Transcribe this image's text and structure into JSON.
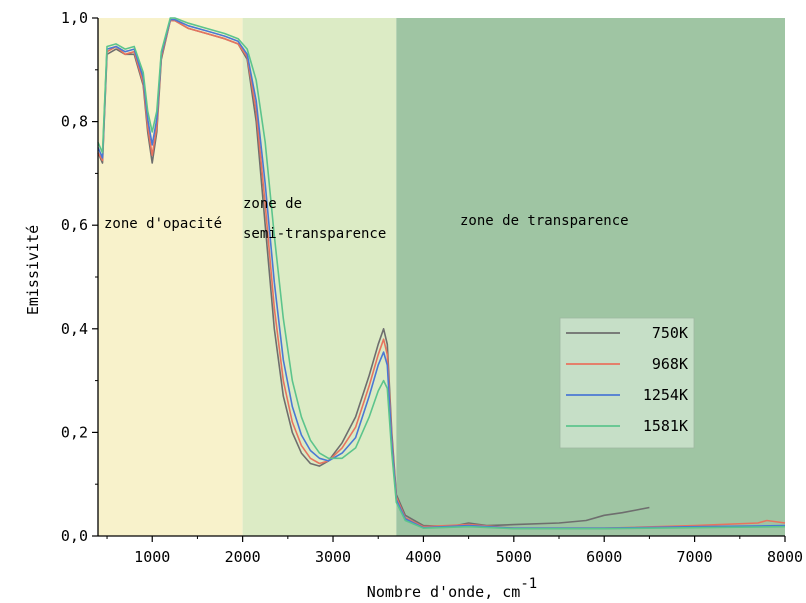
{
  "chart_data": {
    "type": "line",
    "xlabel": "Nombre d'onde, cm",
    "xlabel_sup": "-1",
    "ylabel": "Emissivité",
    "xlim": [
      400,
      8000
    ],
    "ylim": [
      0,
      1.0
    ],
    "xticks": [
      {
        "value": 1000,
        "label": "1000"
      },
      {
        "value": 2000,
        "label": "2000"
      },
      {
        "value": 3000,
        "label": "3000"
      },
      {
        "value": 4000,
        "label": "4000"
      },
      {
        "value": 5000,
        "label": "5000"
      },
      {
        "value": 6000,
        "label": "6000"
      },
      {
        "value": 7000,
        "label": "7000"
      },
      {
        "value": 8000,
        "label": "8000"
      }
    ],
    "yticks": [
      {
        "value": 0.0,
        "label": "0,0"
      },
      {
        "value": 0.2,
        "label": "0,2"
      },
      {
        "value": 0.4,
        "label": "0,4"
      },
      {
        "value": 0.6,
        "label": "0,6"
      },
      {
        "value": 0.8,
        "label": "0,8"
      },
      {
        "value": 1.0,
        "label": "1,0"
      }
    ],
    "zones": [
      {
        "label_lines": [
          "zone d'opacité"
        ],
        "from": 400,
        "to": 2000,
        "color": "#f8f2cb"
      },
      {
        "label_lines": [
          "zone de",
          "semi-transparence"
        ],
        "from": 2000,
        "to": 3700,
        "color": "#dcebc5"
      },
      {
        "label_lines": [
          "zone de transparence"
        ],
        "from": 3700,
        "to": 8000,
        "color": "#9fc5a3"
      }
    ],
    "legend_position": "center-right",
    "series": [
      {
        "name": "750K",
        "color": "#6e6e6e",
        "points": [
          [
            400,
            0.74
          ],
          [
            450,
            0.72
          ],
          [
            500,
            0.93
          ],
          [
            600,
            0.94
          ],
          [
            700,
            0.93
          ],
          [
            800,
            0.93
          ],
          [
            900,
            0.87
          ],
          [
            950,
            0.78
          ],
          [
            1000,
            0.72
          ],
          [
            1050,
            0.78
          ],
          [
            1100,
            0.92
          ],
          [
            1200,
            0.995
          ],
          [
            1250,
            0.995
          ],
          [
            1400,
            0.98
          ],
          [
            1600,
            0.97
          ],
          [
            1800,
            0.96
          ],
          [
            1950,
            0.95
          ],
          [
            2050,
            0.92
          ],
          [
            2150,
            0.8
          ],
          [
            2250,
            0.6
          ],
          [
            2350,
            0.4
          ],
          [
            2450,
            0.27
          ],
          [
            2550,
            0.2
          ],
          [
            2650,
            0.16
          ],
          [
            2750,
            0.14
          ],
          [
            2850,
            0.135
          ],
          [
            2950,
            0.145
          ],
          [
            3100,
            0.18
          ],
          [
            3250,
            0.23
          ],
          [
            3400,
            0.31
          ],
          [
            3500,
            0.37
          ],
          [
            3560,
            0.4
          ],
          [
            3600,
            0.37
          ],
          [
            3650,
            0.2
          ],
          [
            3700,
            0.08
          ],
          [
            3800,
            0.04
          ],
          [
            4000,
            0.02
          ],
          [
            4300,
            0.018
          ],
          [
            4500,
            0.025
          ],
          [
            4700,
            0.02
          ],
          [
            5000,
            0.022
          ],
          [
            5500,
            0.025
          ],
          [
            5800,
            0.03
          ],
          [
            6000,
            0.04
          ],
          [
            6200,
            0.045
          ],
          [
            6350,
            0.05
          ],
          [
            6500,
            0.055
          ]
        ]
      },
      {
        "name": "968K",
        "color": "#e8735e",
        "points": [
          [
            400,
            0.74
          ],
          [
            450,
            0.725
          ],
          [
            500,
            0.935
          ],
          [
            600,
            0.945
          ],
          [
            700,
            0.93
          ],
          [
            800,
            0.935
          ],
          [
            900,
            0.875
          ],
          [
            950,
            0.79
          ],
          [
            1000,
            0.735
          ],
          [
            1050,
            0.79
          ],
          [
            1100,
            0.925
          ],
          [
            1200,
            0.995
          ],
          [
            1250,
            0.995
          ],
          [
            1400,
            0.98
          ],
          [
            1600,
            0.97
          ],
          [
            1800,
            0.96
          ],
          [
            1950,
            0.95
          ],
          [
            2050,
            0.925
          ],
          [
            2150,
            0.82
          ],
          [
            2250,
            0.64
          ],
          [
            2350,
            0.44
          ],
          [
            2450,
            0.3
          ],
          [
            2550,
            0.22
          ],
          [
            2650,
            0.175
          ],
          [
            2750,
            0.15
          ],
          [
            2850,
            0.14
          ],
          [
            2950,
            0.145
          ],
          [
            3100,
            0.17
          ],
          [
            3250,
            0.21
          ],
          [
            3400,
            0.29
          ],
          [
            3500,
            0.35
          ],
          [
            3560,
            0.38
          ],
          [
            3600,
            0.35
          ],
          [
            3650,
            0.19
          ],
          [
            3700,
            0.075
          ],
          [
            3800,
            0.035
          ],
          [
            4000,
            0.018
          ],
          [
            4500,
            0.022
          ],
          [
            5000,
            0.015
          ],
          [
            6000,
            0.015
          ],
          [
            7000,
            0.02
          ],
          [
            7700,
            0.025
          ],
          [
            7800,
            0.03
          ],
          [
            8000,
            0.025
          ]
        ]
      },
      {
        "name": "1254K",
        "color": "#4a78d4",
        "points": [
          [
            400,
            0.75
          ],
          [
            450,
            0.73
          ],
          [
            500,
            0.94
          ],
          [
            600,
            0.945
          ],
          [
            700,
            0.935
          ],
          [
            800,
            0.94
          ],
          [
            900,
            0.885
          ],
          [
            950,
            0.805
          ],
          [
            1000,
            0.755
          ],
          [
            1050,
            0.805
          ],
          [
            1100,
            0.93
          ],
          [
            1200,
            0.997
          ],
          [
            1250,
            0.997
          ],
          [
            1400,
            0.985
          ],
          [
            1600,
            0.975
          ],
          [
            1800,
            0.965
          ],
          [
            1950,
            0.955
          ],
          [
            2050,
            0.93
          ],
          [
            2150,
            0.84
          ],
          [
            2250,
            0.68
          ],
          [
            2350,
            0.49
          ],
          [
            2450,
            0.34
          ],
          [
            2550,
            0.25
          ],
          [
            2650,
            0.195
          ],
          [
            2750,
            0.165
          ],
          [
            2850,
            0.15
          ],
          [
            2950,
            0.145
          ],
          [
            3100,
            0.16
          ],
          [
            3250,
            0.19
          ],
          [
            3400,
            0.27
          ],
          [
            3500,
            0.33
          ],
          [
            3560,
            0.355
          ],
          [
            3600,
            0.33
          ],
          [
            3650,
            0.18
          ],
          [
            3700,
            0.07
          ],
          [
            3800,
            0.033
          ],
          [
            4000,
            0.016
          ],
          [
            4500,
            0.02
          ],
          [
            5000,
            0.015
          ],
          [
            6000,
            0.015
          ],
          [
            7000,
            0.018
          ],
          [
            8000,
            0.02
          ]
        ]
      },
      {
        "name": "1581K",
        "color": "#5cc48c",
        "points": [
          [
            400,
            0.76
          ],
          [
            450,
            0.74
          ],
          [
            500,
            0.945
          ],
          [
            600,
            0.95
          ],
          [
            700,
            0.94
          ],
          [
            800,
            0.945
          ],
          [
            900,
            0.895
          ],
          [
            950,
            0.82
          ],
          [
            1000,
            0.78
          ],
          [
            1050,
            0.82
          ],
          [
            1100,
            0.935
          ],
          [
            1200,
            1.0
          ],
          [
            1250,
            1.0
          ],
          [
            1400,
            0.99
          ],
          [
            1600,
            0.98
          ],
          [
            1800,
            0.97
          ],
          [
            1950,
            0.96
          ],
          [
            2050,
            0.94
          ],
          [
            2150,
            0.88
          ],
          [
            2250,
            0.76
          ],
          [
            2350,
            0.58
          ],
          [
            2450,
            0.42
          ],
          [
            2550,
            0.3
          ],
          [
            2650,
            0.23
          ],
          [
            2750,
            0.185
          ],
          [
            2850,
            0.16
          ],
          [
            2950,
            0.15
          ],
          [
            3100,
            0.15
          ],
          [
            3250,
            0.17
          ],
          [
            3400,
            0.23
          ],
          [
            3500,
            0.28
          ],
          [
            3560,
            0.3
          ],
          [
            3600,
            0.285
          ],
          [
            3650,
            0.16
          ],
          [
            3700,
            0.065
          ],
          [
            3800,
            0.03
          ],
          [
            4000,
            0.015
          ],
          [
            4500,
            0.018
          ],
          [
            5000,
            0.014
          ],
          [
            6000,
            0.014
          ],
          [
            7000,
            0.016
          ],
          [
            8000,
            0.018
          ]
        ]
      }
    ]
  }
}
